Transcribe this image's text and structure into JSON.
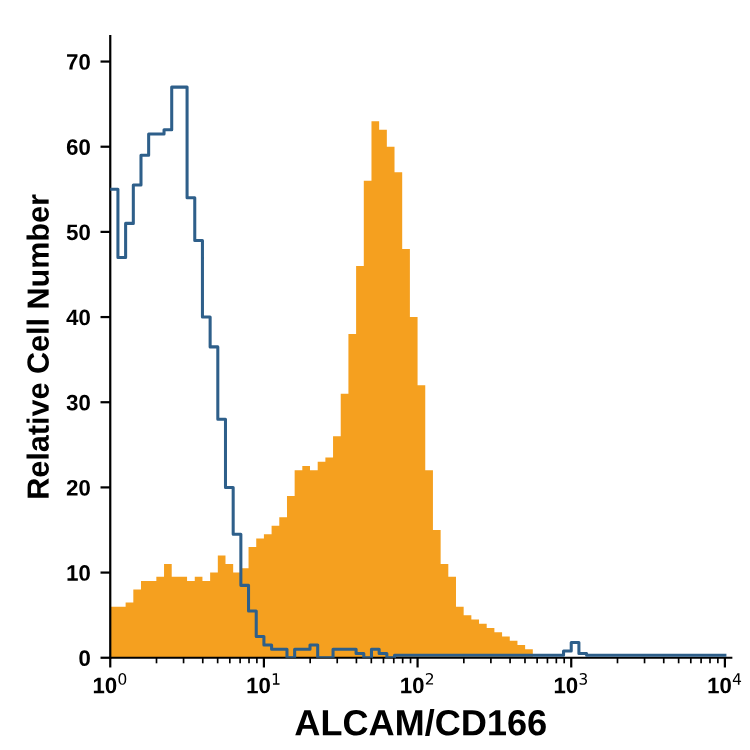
{
  "chart_data": {
    "type": "histogram",
    "xlabel": "ALCAM/CD166",
    "ylabel": "Relative Cell Number",
    "log": "x",
    "xlim": [
      1,
      11000
    ],
    "ylim": [
      0,
      73
    ],
    "xticks": [
      {
        "value": 1,
        "label": "10$^{0}$"
      },
      {
        "value": 10,
        "label": "10$^{1}$"
      },
      {
        "value": 100,
        "label": "10$^{2}$"
      },
      {
        "value": 1000,
        "label": "10$^{3}$"
      },
      {
        "value": 10000,
        "label": "10$^{4}$"
      }
    ],
    "yticks": [
      0,
      10,
      20,
      30,
      40,
      50,
      60,
      70
    ],
    "grid": false,
    "bins": [
      1,
      1.122,
      1.259,
      1.413,
      1.585,
      1.778,
      1.995,
      2.239,
      2.512,
      2.818,
      3.162,
      3.548,
      3.981,
      4.467,
      5.012,
      5.623,
      6.31,
      7.079,
      7.943,
      8.913,
      10,
      11.22,
      12.59,
      14.13,
      15.85,
      17.78,
      19.95,
      22.39,
      25.12,
      28.18,
      31.62,
      35.48,
      39.81,
      44.67,
      50.12,
      56.23,
      63.1,
      70.79,
      79.43,
      89.13,
      100,
      112.2,
      125.9,
      141.3,
      158.5,
      177.8,
      199.5,
      223.9,
      251.2,
      281.8,
      316.2,
      354.8,
      398.1,
      446.7,
      501.2,
      562.3,
      631,
      707.9,
      794.3,
      891.3,
      1000,
      1122,
      1259,
      1413,
      1585,
      1778,
      1995,
      2239,
      2512,
      2818,
      3162,
      3548,
      3981,
      4467,
      5012,
      5623,
      6310,
      7079,
      7943,
      8913,
      10000
    ],
    "series": [
      {
        "color": "#f5a01f",
        "values": [
          6,
          6,
          6.5,
          8,
          9,
          9,
          9.5,
          11,
          9.5,
          9.5,
          9,
          9.5,
          9,
          10,
          12,
          11,
          10,
          10.5,
          13,
          14,
          14.5,
          15.5,
          16.5,
          19,
          22,
          22.5,
          22,
          23,
          23.5,
          26,
          31,
          38,
          46,
          56,
          63,
          62,
          60,
          57,
          48,
          40,
          32,
          22,
          15,
          11,
          9.5,
          6,
          5,
          4.5,
          4,
          3.5,
          3,
          2.5,
          2,
          1.5,
          1,
          0,
          0,
          0,
          0,
          0,
          0,
          0,
          0,
          0,
          0,
          0,
          0,
          0,
          0,
          0,
          0,
          0,
          0,
          0,
          0,
          0,
          0,
          0,
          0,
          0
        ]
      },
      {
        "type": "step",
        "color": "#2e5f8a",
        "x": [
          1,
          1.122,
          1.259,
          1.413,
          1.585,
          1.778,
          1.995,
          2.239,
          2.512,
          2.818,
          3.162,
          3.548,
          3.981,
          4.467,
          5.012,
          5.623,
          6.31,
          7.079,
          7.943,
          8.913,
          10,
          11.22,
          12.59,
          14.13,
          15.85,
          17.78,
          19.95,
          22.39,
          25.12,
          28.18,
          31.62,
          35.48,
          39.81,
          44.67,
          50.12,
          56.23,
          63.1,
          70.79,
          79.43,
          89.13,
          100,
          112.2,
          125.9,
          141.3,
          158.5,
          177.8,
          199.5,
          223.9,
          251.2,
          281.8,
          316.2,
          354.8,
          398.1,
          446.7,
          501.2,
          562.3,
          631,
          707.9,
          794.3,
          891.3,
          1000,
          1122,
          1259,
          1413,
          1585,
          1778,
          1995,
          2239,
          2512,
          2818,
          3162,
          3548,
          3981,
          4467,
          5012,
          5623,
          6310,
          7079,
          7943,
          8913,
          10000
        ],
        "values": [
          55,
          47,
          51,
          55.5,
          59,
          61.5,
          61.5,
          62,
          67,
          67,
          54,
          49,
          40,
          36.5,
          28,
          20,
          14.5,
          8.5,
          5.5,
          2.5,
          1.5,
          1,
          1,
          0,
          1,
          1,
          1.5,
          0,
          0,
          1,
          1,
          1,
          0.5,
          0,
          1,
          0.5,
          0,
          0.3,
          0.3,
          0.3,
          0.3,
          0.3,
          0.3,
          0.3,
          0.3,
          0.3,
          0.3,
          0.3,
          0.3,
          0.3,
          0.3,
          0.3,
          0.3,
          0.3,
          0.3,
          0.3,
          0.3,
          0.3,
          0.3,
          0.8,
          1.8,
          0.5,
          0.3,
          0.3,
          0.3,
          0.3,
          0.3,
          0.3,
          0.3,
          0.3,
          0.3,
          0.3,
          0.3,
          0.3,
          0.3,
          0.3,
          0.3,
          0.3,
          0.3,
          0.3,
          0.3
        ]
      }
    ]
  }
}
